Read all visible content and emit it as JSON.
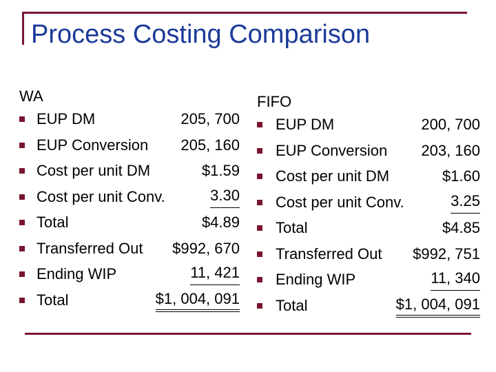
{
  "title": "Process Costing Comparison",
  "colors": {
    "title": "#1a3a99",
    "accent": "#7a1530",
    "text": "#000000"
  },
  "left": {
    "heading": "WA",
    "rows": [
      {
        "label": "EUP DM",
        "value": "205, 700"
      },
      {
        "label": "EUP Conversion",
        "value": "205, 160"
      },
      {
        "label": "Cost per unit DM",
        "value": "$1.59"
      },
      {
        "label": "Cost per unit Conv.",
        "value": "3.30"
      },
      {
        "label": "Total",
        "value": "$4.89"
      },
      {
        "label": "Transferred Out",
        "value": "$992, 670"
      },
      {
        "label": "Ending WIP",
        "value": "11, 421"
      },
      {
        "label": "Total",
        "value": "$1, 004, 091"
      }
    ]
  },
  "right": {
    "heading": "FIFO",
    "rows": [
      {
        "label": "EUP DM",
        "value": "200, 700"
      },
      {
        "label": "EUP Conversion",
        "value": "203, 160"
      },
      {
        "label": "Cost per unit DM",
        "value": "$1.60"
      },
      {
        "label": "Cost per unit Conv.",
        "value": "3.25"
      },
      {
        "label": "Total",
        "value": "$4.85"
      },
      {
        "label": "Transferred Out",
        "value": "$992, 751"
      },
      {
        "label": "Ending WIP",
        "value": "11, 340"
      },
      {
        "label": "Total",
        "value": "$1, 004, 091"
      }
    ]
  }
}
